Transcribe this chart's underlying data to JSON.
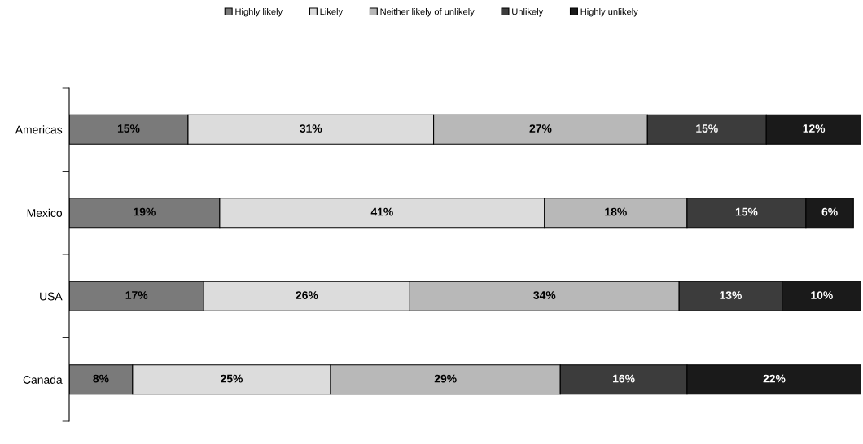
{
  "chart_data": {
    "type": "bar",
    "orientation": "horizontal",
    "stacked": true,
    "categories": [
      "Americas",
      "Mexico",
      "USA",
      "Canada"
    ],
    "series": [
      {
        "name": "Highly likely",
        "color": "#7a7a7a",
        "values": [
          15,
          19,
          17,
          8
        ],
        "value_labels": [
          "15%",
          "19%",
          "17%",
          "8%"
        ]
      },
      {
        "name": "Likely",
        "color": "#dcdcdc",
        "values": [
          31,
          41,
          26,
          25
        ],
        "value_labels": [
          "31%",
          "41%",
          "26%",
          "25%"
        ]
      },
      {
        "name": "Neither likely of unlikely",
        "color": "#b8b8b8",
        "values": [
          27,
          18,
          34,
          29
        ],
        "value_labels": [
          "27%",
          "18%",
          "34%",
          "29%"
        ]
      },
      {
        "name": "Unlikely",
        "color": "#3c3c3c",
        "values": [
          15,
          15,
          13,
          16
        ],
        "value_labels": [
          "15%",
          "15%",
          "13%",
          "16%"
        ]
      },
      {
        "name": "Highly unlikely",
        "color": "#1a1a1a",
        "values": [
          12,
          6,
          10,
          22
        ],
        "value_labels": [
          "12%",
          "6%",
          "10%",
          "22%"
        ]
      }
    ],
    "tick_labels": "y",
    "legend": "top"
  }
}
